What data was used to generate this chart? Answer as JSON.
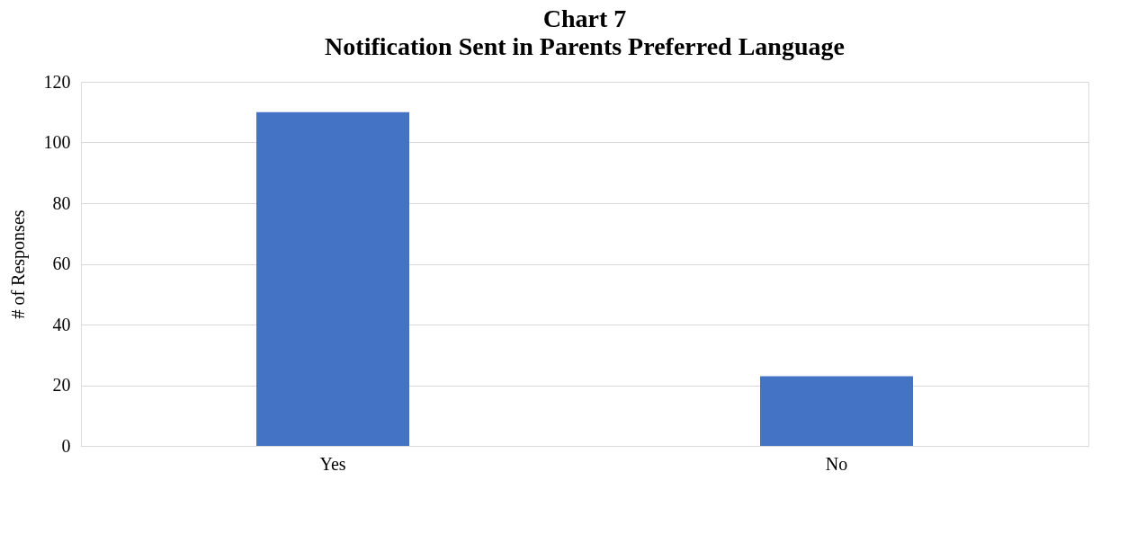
{
  "chart_data": {
    "type": "bar",
    "title": "Chart 7",
    "subtitle": "Notification Sent in Parents Preferred Language",
    "ylabel": "# of Responses",
    "categories": [
      "Yes",
      "No"
    ],
    "values": [
      110,
      23
    ],
    "color": "#4472c4",
    "ylim": [
      0,
      120
    ],
    "yticks": [
      0,
      20,
      40,
      60,
      80,
      100,
      120
    ],
    "grid": "y"
  }
}
